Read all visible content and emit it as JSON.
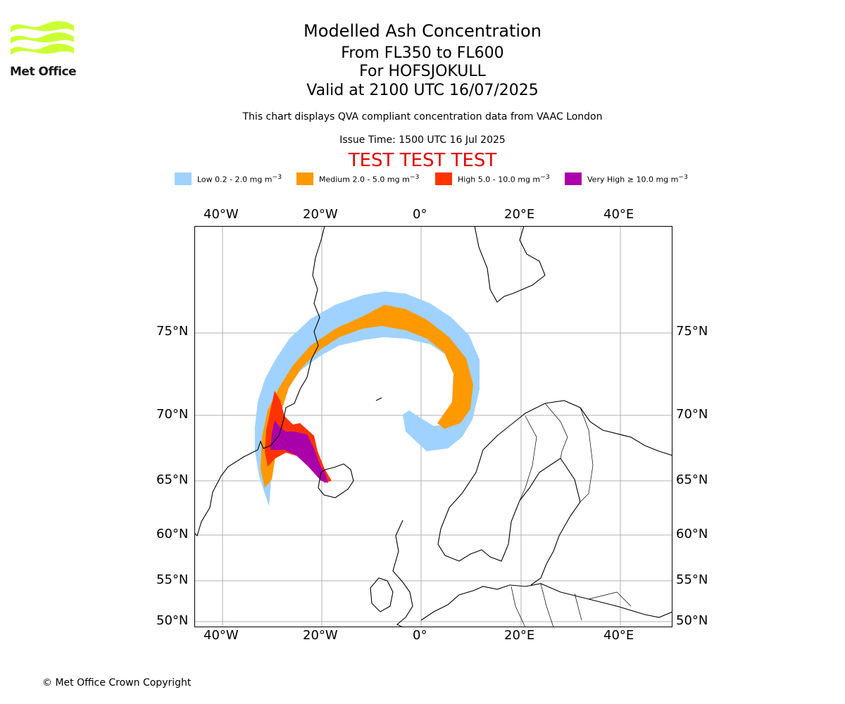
{
  "header": {
    "title": "Modelled Ash Concentration",
    "levels": "From FL350 to FL600",
    "volcano": "For HOFSJOKULL",
    "valid": "Valid at 2100 UTC 16/07/2025",
    "description": "This chart displays QVA compliant concentration data from VAAC London",
    "issue_time": "Issue Time: 1500 UTC 16 Jul 2025",
    "test_banner": "TEST TEST TEST"
  },
  "logo": {
    "text": "Met Office",
    "color": "#ccff33"
  },
  "legend": [
    {
      "label": "Low 0.2 - 2.0 mg m",
      "sup": "−3",
      "color": "#a0d2ff"
    },
    {
      "label": "Medium 2.0 - 5.0 mg m",
      "sup": "−3",
      "color": "#ff9900"
    },
    {
      "label": "High 5.0 - 10.0 mg m",
      "sup": "−3",
      "color": "#ff3300"
    },
    {
      "label": "Very High  ≥  10.0 mg m",
      "sup": "−3",
      "color": "#aa00aa"
    }
  ],
  "map": {
    "lon_labels": [
      "40°W",
      "20°W",
      "0°",
      "20°E",
      "40°E"
    ],
    "lat_labels": [
      "75°N",
      "70°N",
      "65°N",
      "60°N",
      "55°N",
      "50°N"
    ],
    "grid": true
  },
  "footer": {
    "copyright": "© Met Office Crown Copyright"
  }
}
